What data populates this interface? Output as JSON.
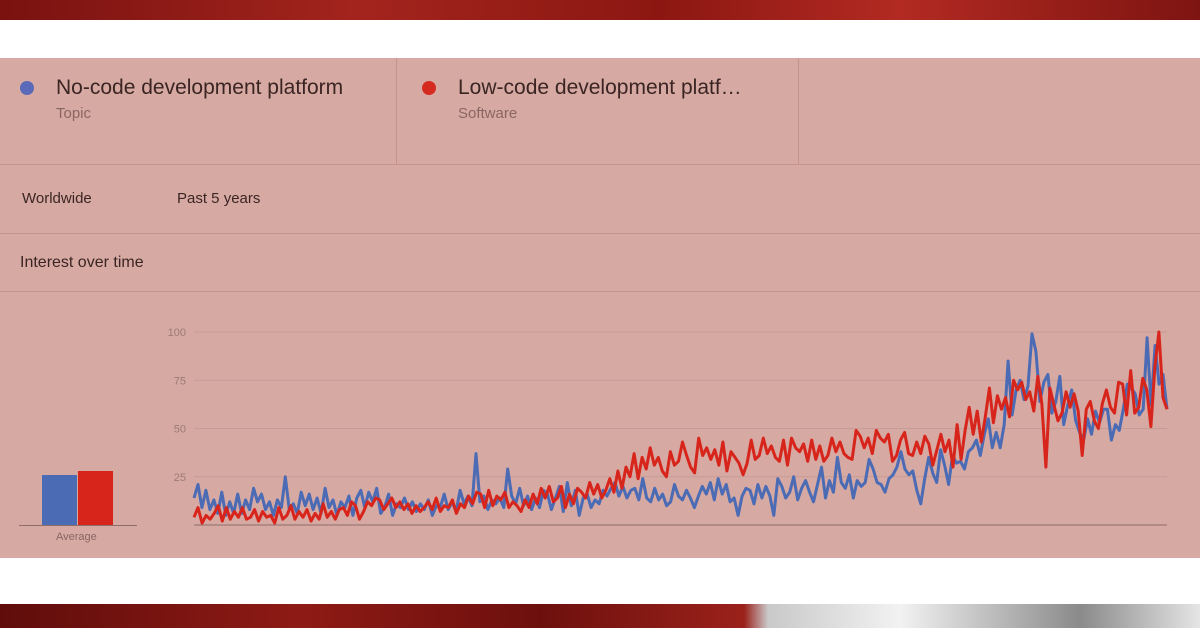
{
  "terms": [
    {
      "name": "No-code development platform",
      "type": "Topic",
      "color": "#5b6ab8"
    },
    {
      "name": "Low-code development platf…",
      "type": "Software",
      "color": "#d42a20"
    }
  ],
  "filters": {
    "region": "Worldwide",
    "period": "Past 5 years"
  },
  "section_title": "Interest over time",
  "average_label": "Average",
  "chart_data": {
    "type": "line",
    "title": "Interest over time",
    "xlabel": "",
    "ylabel": "",
    "ylim": [
      0,
      100
    ],
    "yticks": [
      25,
      50,
      75,
      100
    ],
    "grid": true,
    "legend": "top",
    "series": [
      {
        "name": "No-code development platform",
        "color": "#4b6bb5",
        "average": 26,
        "values": [
          14,
          21,
          9,
          18,
          8,
          13,
          6,
          17,
          5,
          12,
          6,
          16,
          6,
          13,
          8,
          19,
          12,
          16,
          8,
          12,
          5,
          13,
          9,
          25,
          8,
          11,
          6,
          17,
          10,
          16,
          8,
          14,
          6,
          19,
          9,
          13,
          5,
          12,
          9,
          15,
          5,
          14,
          18,
          9,
          17,
          12,
          19,
          6,
          9,
          16,
          5,
          11,
          9,
          14,
          8,
          12,
          7,
          11,
          8,
          13,
          5,
          10,
          9,
          16,
          8,
          12,
          7,
          18,
          11,
          15,
          10,
          37,
          12,
          15,
          8,
          13,
          11,
          14,
          9,
          29,
          15,
          11,
          19,
          10,
          15,
          8,
          14,
          9,
          18,
          16,
          8,
          14,
          20,
          7,
          22,
          10,
          18,
          5,
          14,
          16,
          9,
          13,
          11,
          18,
          15,
          19,
          22,
          15,
          20,
          14,
          18,
          19,
          13,
          24,
          14,
          12,
          19,
          13,
          16,
          10,
          12,
          21,
          15,
          13,
          18,
          14,
          9,
          15,
          20,
          16,
          22,
          13,
          24,
          16,
          21,
          12,
          14,
          5,
          15,
          19,
          18,
          11,
          21,
          14,
          20,
          15,
          5,
          24,
          20,
          14,
          17,
          25,
          13,
          19,
          23,
          17,
          12,
          21,
          30,
          14,
          23,
          17,
          35,
          22,
          19,
          26,
          14,
          23,
          20,
          22,
          34,
          29,
          22,
          21,
          17,
          24,
          26,
          30,
          38,
          29,
          26,
          28,
          18,
          11,
          24,
          35,
          27,
          22,
          39,
          31,
          21,
          36,
          32,
          33,
          29,
          38,
          40,
          44,
          36,
          47,
          55,
          40,
          48,
          40,
          52,
          85,
          57,
          70,
          75,
          65,
          72,
          99,
          90,
          64,
          74,
          78,
          58,
          64,
          77,
          52,
          62,
          70,
          54,
          48,
          44,
          55,
          47,
          59,
          53,
          60,
          60,
          44,
          52,
          49,
          60,
          73,
          71,
          68,
          57,
          60,
          97,
          62,
          93,
          73,
          78,
          60
        ]
      },
      {
        "name": "Low-code development platf…",
        "color": "#d8251c",
        "average": 28,
        "values": [
          4,
          9,
          1,
          5,
          3,
          6,
          10,
          2,
          9,
          3,
          7,
          4,
          9,
          3,
          4,
          8,
          2,
          7,
          4,
          5,
          1,
          9,
          3,
          5,
          10,
          3,
          7,
          4,
          8,
          2,
          6,
          3,
          11,
          4,
          7,
          3,
          8,
          9,
          5,
          12,
          10,
          3,
          7,
          12,
          10,
          14,
          13,
          8,
          11,
          14,
          9,
          12,
          8,
          11,
          6,
          10,
          7,
          9,
          12,
          8,
          14,
          7,
          10,
          9,
          13,
          6,
          11,
          9,
          15,
          11,
          17,
          16,
          9,
          18,
          10,
          15,
          13,
          17,
          9,
          12,
          10,
          7,
          13,
          9,
          16,
          11,
          19,
          14,
          20,
          12,
          14,
          20,
          9,
          16,
          11,
          19,
          17,
          14,
          22,
          16,
          21,
          14,
          18,
          24,
          17,
          28,
          19,
          30,
          25,
          37,
          24,
          35,
          29,
          40,
          31,
          35,
          28,
          25,
          38,
          31,
          33,
          43,
          36,
          30,
          27,
          45,
          36,
          40,
          34,
          39,
          31,
          43,
          28,
          38,
          35,
          32,
          26,
          32,
          44,
          34,
          36,
          45,
          37,
          41,
          35,
          33,
          44,
          31,
          45,
          40,
          38,
          42,
          33,
          44,
          34,
          41,
          33,
          36,
          45,
          38,
          43,
          37,
          35,
          34,
          49,
          46,
          40,
          45,
          37,
          49,
          45,
          43,
          47,
          33,
          36,
          44,
          48,
          37,
          36,
          43,
          37,
          46,
          42,
          31,
          39,
          47,
          38,
          44,
          30,
          52,
          34,
          49,
          61,
          47,
          59,
          43,
          56,
          71,
          53,
          67,
          60,
          66,
          56,
          75,
          70,
          74,
          65,
          69,
          59,
          77,
          63,
          30,
          71,
          62,
          54,
          58,
          69,
          61,
          68,
          59,
          36,
          60,
          64,
          54,
          50,
          63,
          70,
          61,
          58,
          74,
          73,
          57,
          80,
          58,
          61,
          76,
          70,
          51,
          82,
          100,
          66,
          60
        ]
      }
    ]
  }
}
